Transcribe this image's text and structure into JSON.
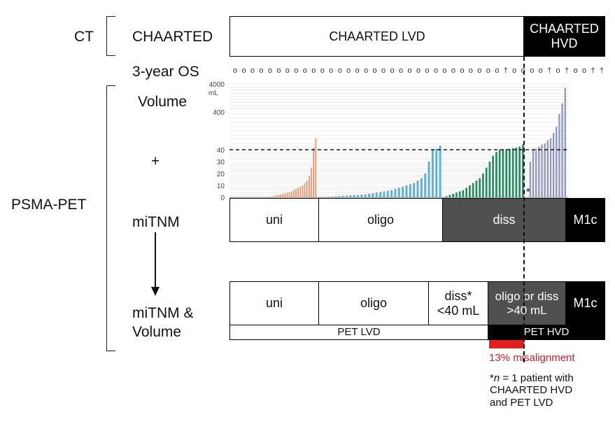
{
  "labels": {
    "ct": "CT",
    "chaarted": "CHAARTED",
    "os_3yr": "3-year OS",
    "volume": "Volume",
    "plus": "+",
    "psma_pet": "PSMA-PET",
    "mitnm": "miTNM",
    "mitnm_volume_line1": "miTNM &",
    "mitnm_volume_line2": "Volume"
  },
  "chaarted_row": {
    "lvd": "CHAARTED LVD",
    "hvd_line1": "CHAARTED",
    "hvd_line2": "HVD"
  },
  "os_markers": {
    "survivor": "o",
    "death": "†",
    "deaths_at": [
      11,
      13,
      16,
      18,
      19
    ],
    "survivor_count": 38
  },
  "mitnm_row": {
    "uni": "uni",
    "oligo": "oligo",
    "diss": "diss",
    "m1c": "M1c"
  },
  "combined_row": {
    "uni": "uni",
    "oligo": "oligo",
    "diss_line1": "diss*",
    "diss_line2": "<40 mL",
    "oligo_diss_line1": "oligo or diss",
    "oligo_diss_line2": ">40 mL",
    "m1c": "M1c"
  },
  "pet_row": {
    "lvd": "PET LVD",
    "hvd": "PET HVD"
  },
  "misalignment": {
    "text": "13% misalignment",
    "color": "#e02020"
  },
  "footnote": {
    "line1_prefix": "*",
    "line1_n": "n",
    "line1_rest": " = 1 patient with",
    "line2": "CHAARTED HVD",
    "line3": "and PET LVD"
  },
  "asterisk": "*",
  "chart_data": {
    "type": "bar",
    "ylabel": "mL",
    "yticks": [
      "0",
      "10",
      "20",
      "30",
      "40",
      "400",
      "4000"
    ],
    "threshold": 40,
    "series": [
      {
        "group": "uni",
        "color": "#e8956f",
        "values": [
          0.5,
          0.7,
          1.0,
          1.5,
          2,
          2.5,
          3,
          3.5,
          4,
          4.5,
          5,
          6,
          7,
          8,
          9,
          10,
          12,
          14,
          18,
          25,
          60,
          150
        ]
      },
      {
        "group": "oligo",
        "color": "#5fb0cb",
        "values": [
          0.3,
          0.5,
          0.6,
          0.8,
          1.0,
          1.2,
          1.4,
          1.6,
          1.8,
          2,
          2.3,
          2.6,
          3,
          3.5,
          4,
          4.5,
          5,
          5.5,
          6,
          7,
          8,
          9,
          10,
          11,
          12,
          14,
          16,
          20,
          30,
          40,
          50,
          80
        ]
      },
      {
        "group": "diss",
        "color": "#1e8a5c",
        "values": [
          1,
          2,
          3,
          4,
          5,
          6,
          8,
          10,
          12,
          14,
          16,
          20,
          25,
          30,
          35,
          38,
          40,
          42,
          45,
          48,
          55,
          60,
          70,
          90
        ]
      },
      {
        "group": "m1c",
        "color": "#8f95bd",
        "values": [
          30,
          40,
          50,
          70,
          90,
          100,
          130,
          150,
          200,
          260,
          380,
          1500,
          3500
        ]
      }
    ]
  }
}
